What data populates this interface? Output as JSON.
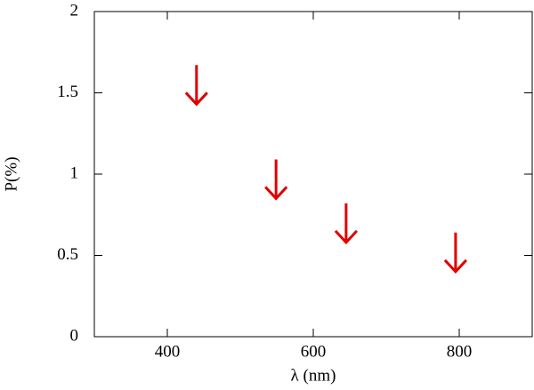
{
  "chart_data": {
    "type": "scatter",
    "marker": "upper-limit-arrow",
    "xlabel": "λ (nm)",
    "ylabel": "P(%)",
    "x": [
      440,
      549,
      645,
      795
    ],
    "values": [
      1.43,
      0.85,
      0.58,
      0.4
    ],
    "color": "#e00000",
    "xlim": [
      300,
      900
    ],
    "xticks": [
      400,
      600,
      800
    ],
    "ylim": [
      0,
      2
    ],
    "yticks": [
      0,
      0.5,
      1,
      1.5,
      2
    ]
  }
}
